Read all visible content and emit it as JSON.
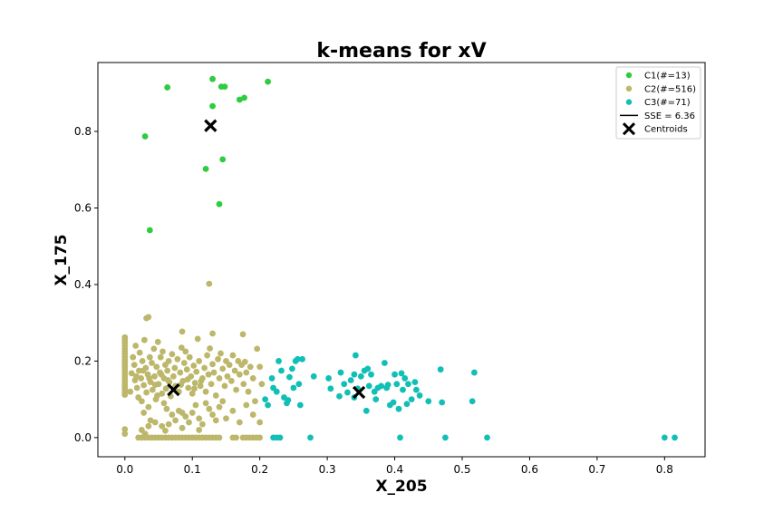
{
  "chart_data": {
    "type": "scatter",
    "title": "k-means for xV",
    "xlabel": "X_205",
    "ylabel": "X_175",
    "xlim": [
      -0.04,
      0.86
    ],
    "ylim": [
      -0.05,
      0.98
    ],
    "xticks": [
      "0.0",
      "0.1",
      "0.2",
      "0.3",
      "0.4",
      "0.5",
      "0.6",
      "0.7",
      "0.8"
    ],
    "yticks": [
      "0.0",
      "0.2",
      "0.4",
      "0.6",
      "0.8"
    ],
    "grid": false,
    "legend_position": "top-right",
    "sse_label": "SSE = 6.36",
    "centroids_label": "Centroids",
    "series": [
      {
        "name": "C1(#=13)",
        "color": "#2ecc40",
        "points": [
          [
            0.063,
            0.915
          ],
          [
            0.13,
            0.937
          ],
          [
            0.143,
            0.917
          ],
          [
            0.148,
            0.917
          ],
          [
            0.212,
            0.93
          ],
          [
            0.17,
            0.883
          ],
          [
            0.177,
            0.888
          ],
          [
            0.13,
            0.866
          ],
          [
            0.03,
            0.787
          ],
          [
            0.145,
            0.727
          ],
          [
            0.12,
            0.702
          ],
          [
            0.14,
            0.61
          ],
          [
            0.037,
            0.542
          ]
        ]
      },
      {
        "name": "C2(#=516)",
        "color": "#bdb76b",
        "points": [
          [
            0.125,
            0.402
          ],
          [
            0.035,
            0.315
          ],
          [
            0.032,
            0.312
          ],
          [
            0.085,
            0.277
          ],
          [
            0.13,
            0.272
          ],
          [
            0.175,
            0.27
          ],
          [
            0.0,
            0.262
          ],
          [
            0.0,
            0.255
          ],
          [
            0.0,
            0.248
          ],
          [
            0.0,
            0.24
          ],
          [
            0.0,
            0.232
          ],
          [
            0.0,
            0.225
          ],
          [
            0.0,
            0.218
          ],
          [
            0.0,
            0.21
          ],
          [
            0.0,
            0.203
          ],
          [
            0.0,
            0.196
          ],
          [
            0.0,
            0.189
          ],
          [
            0.0,
            0.182
          ],
          [
            0.0,
            0.175
          ],
          [
            0.0,
            0.168
          ],
          [
            0.0,
            0.161
          ],
          [
            0.0,
            0.154
          ],
          [
            0.0,
            0.147
          ],
          [
            0.0,
            0.14
          ],
          [
            0.0,
            0.133
          ],
          [
            0.0,
            0.126
          ],
          [
            0.0,
            0.119
          ],
          [
            0.0,
            0.112
          ],
          [
            0.0,
            0.022
          ],
          [
            0.0,
            0.01
          ],
          [
            0.01,
            0.168
          ],
          [
            0.012,
            0.21
          ],
          [
            0.014,
            0.19
          ],
          [
            0.015,
            0.15
          ],
          [
            0.016,
            0.24
          ],
          [
            0.018,
            0.13
          ],
          [
            0.02,
            0.105
          ],
          [
            0.021,
            0.175
          ],
          [
            0.022,
            0.222
          ],
          [
            0.024,
            0.155
          ],
          [
            0.025,
            0.095
          ],
          [
            0.026,
            0.2
          ],
          [
            0.028,
            0.137
          ],
          [
            0.029,
            0.255
          ],
          [
            0.031,
            0.182
          ],
          [
            0.032,
            0.118
          ],
          [
            0.034,
            0.165
          ],
          [
            0.035,
            0.08
          ],
          [
            0.037,
            0.21
          ],
          [
            0.038,
            0.145
          ],
          [
            0.04,
            0.195
          ],
          [
            0.041,
            0.125
          ],
          [
            0.043,
            0.232
          ],
          [
            0.044,
            0.16
          ],
          [
            0.046,
            0.1
          ],
          [
            0.047,
            0.185
          ],
          [
            0.049,
            0.25
          ],
          [
            0.05,
            0.14
          ],
          [
            0.052,
            0.17
          ],
          [
            0.053,
            0.21
          ],
          [
            0.055,
            0.115
          ],
          [
            0.056,
            0.225
          ],
          [
            0.058,
            0.155
          ],
          [
            0.06,
            0.19
          ],
          [
            0.061,
            0.128
          ],
          [
            0.063,
            0.175
          ],
          [
            0.065,
            0.2
          ],
          [
            0.066,
            0.145
          ],
          [
            0.068,
            0.108
          ],
          [
            0.07,
            0.218
          ],
          [
            0.072,
            0.16
          ],
          [
            0.074,
            0.182
          ],
          [
            0.075,
            0.135
          ],
          [
            0.078,
            0.205
          ],
          [
            0.08,
            0.12
          ],
          [
            0.082,
            0.17
          ],
          [
            0.084,
            0.235
          ],
          [
            0.086,
            0.148
          ],
          [
            0.088,
            0.195
          ],
          [
            0.09,
            0.225
          ],
          [
            0.092,
            0.178
          ],
          [
            0.094,
            0.13
          ],
          [
            0.096,
            0.21
          ],
          [
            0.098,
            0.16
          ],
          [
            0.1,
            0.115
          ],
          [
            0.102,
            0.188
          ],
          [
            0.104,
            0.143
          ],
          [
            0.106,
            0.172
          ],
          [
            0.108,
            0.258
          ],
          [
            0.11,
            0.2
          ],
          [
            0.112,
            0.135
          ],
          [
            0.115,
            0.155
          ],
          [
            0.118,
            0.182
          ],
          [
            0.12,
            0.12
          ],
          [
            0.122,
            0.215
          ],
          [
            0.124,
            0.165
          ],
          [
            0.126,
            0.233
          ],
          [
            0.128,
            0.14
          ],
          [
            0.13,
            0.192
          ],
          [
            0.132,
            0.17
          ],
          [
            0.135,
            0.11
          ],
          [
            0.138,
            0.205
          ],
          [
            0.14,
            0.155
          ],
          [
            0.142,
            0.22
          ],
          [
            0.145,
            0.18
          ],
          [
            0.148,
            0.135
          ],
          [
            0.15,
            0.2
          ],
          [
            0.152,
            0.16
          ],
          [
            0.155,
            0.19
          ],
          [
            0.158,
            0.148
          ],
          [
            0.16,
            0.215
          ],
          [
            0.163,
            0.175
          ],
          [
            0.165,
            0.125
          ],
          [
            0.168,
            0.2
          ],
          [
            0.17,
            0.165
          ],
          [
            0.173,
            0.19
          ],
          [
            0.176,
            0.14
          ],
          [
            0.178,
            0.198
          ],
          [
            0.18,
            0.17
          ],
          [
            0.183,
            0.12
          ],
          [
            0.186,
            0.185
          ],
          [
            0.19,
            0.155
          ],
          [
            0.193,
            0.095
          ],
          [
            0.196,
            0.232
          ],
          [
            0.2,
            0.185
          ],
          [
            0.203,
            0.14
          ],
          [
            0.008,
            0.12
          ],
          [
            0.017,
            0.16
          ],
          [
            0.027,
            0.175
          ],
          [
            0.036,
            0.155
          ],
          [
            0.045,
            0.138
          ],
          [
            0.054,
            0.165
          ],
          [
            0.064,
            0.15
          ],
          [
            0.073,
            0.128
          ],
          [
            0.083,
            0.138
          ],
          [
            0.093,
            0.152
          ],
          [
            0.103,
            0.128
          ],
          [
            0.113,
            0.148
          ],
          [
            0.048,
            0.11
          ],
          [
            0.058,
            0.09
          ],
          [
            0.062,
            0.075
          ],
          [
            0.07,
            0.06
          ],
          [
            0.08,
            0.07
          ],
          [
            0.09,
            0.055
          ],
          [
            0.1,
            0.065
          ],
          [
            0.11,
            0.05
          ],
          [
            0.12,
            0.09
          ],
          [
            0.13,
            0.06
          ],
          [
            0.14,
            0.08
          ],
          [
            0.15,
            0.05
          ],
          [
            0.16,
            0.07
          ],
          [
            0.17,
            0.04
          ],
          [
            0.18,
            0.085
          ],
          [
            0.19,
            0.06
          ],
          [
            0.2,
            0.04
          ],
          [
            0.028,
            0.065
          ],
          [
            0.038,
            0.045
          ],
          [
            0.045,
            0.04
          ],
          [
            0.055,
            0.03
          ],
          [
            0.065,
            0.035
          ],
          [
            0.075,
            0.045
          ],
          [
            0.085,
            0.065
          ],
          [
            0.095,
            0.04
          ],
          [
            0.105,
            0.085
          ],
          [
            0.115,
            0.035
          ],
          [
            0.125,
            0.075
          ],
          [
            0.135,
            0.045
          ],
          [
            0.145,
            0.095
          ],
          [
            0.025,
            0.02
          ],
          [
            0.03,
            0.01
          ],
          [
            0.035,
            0.03
          ],
          [
            0.06,
            0.018
          ],
          [
            0.11,
            0.02
          ],
          [
            0.085,
            0.025
          ],
          [
            0.02,
            0.0
          ],
          [
            0.025,
            0.0
          ],
          [
            0.03,
            0.0
          ],
          [
            0.035,
            0.0
          ],
          [
            0.04,
            0.0
          ],
          [
            0.045,
            0.0
          ],
          [
            0.05,
            0.0
          ],
          [
            0.055,
            0.0
          ],
          [
            0.06,
            0.0
          ],
          [
            0.065,
            0.0
          ],
          [
            0.07,
            0.0
          ],
          [
            0.075,
            0.0
          ],
          [
            0.08,
            0.0
          ],
          [
            0.085,
            0.0
          ],
          [
            0.09,
            0.0
          ],
          [
            0.095,
            0.0
          ],
          [
            0.1,
            0.0
          ],
          [
            0.105,
            0.0
          ],
          [
            0.11,
            0.0
          ],
          [
            0.115,
            0.0
          ],
          [
            0.12,
            0.0
          ],
          [
            0.125,
            0.0
          ],
          [
            0.13,
            0.0
          ],
          [
            0.135,
            0.0
          ],
          [
            0.14,
            0.0
          ],
          [
            0.16,
            0.0
          ],
          [
            0.165,
            0.0
          ],
          [
            0.175,
            0.0
          ],
          [
            0.18,
            0.0
          ],
          [
            0.185,
            0.0
          ],
          [
            0.19,
            0.0
          ],
          [
            0.195,
            0.0
          ],
          [
            0.2,
            0.0
          ]
        ]
      },
      {
        "name": "C3(#=71)",
        "color": "#11bfb6",
        "points": [
          [
            0.208,
            0.1
          ],
          [
            0.212,
            0.085
          ],
          [
            0.218,
            0.155
          ],
          [
            0.22,
            0.13
          ],
          [
            0.225,
            0.12
          ],
          [
            0.228,
            0.2
          ],
          [
            0.232,
            0.175
          ],
          [
            0.236,
            0.105
          ],
          [
            0.24,
            0.09
          ],
          [
            0.244,
            0.158
          ],
          [
            0.248,
            0.18
          ],
          [
            0.25,
            0.13
          ],
          [
            0.253,
            0.2
          ],
          [
            0.256,
            0.205
          ],
          [
            0.258,
            0.14
          ],
          [
            0.26,
            0.085
          ],
          [
            0.242,
            0.098
          ],
          [
            0.28,
            0.16
          ],
          [
            0.302,
            0.155
          ],
          [
            0.305,
            0.128
          ],
          [
            0.318,
            0.108
          ],
          [
            0.32,
            0.17
          ],
          [
            0.325,
            0.14
          ],
          [
            0.33,
            0.118
          ],
          [
            0.335,
            0.15
          ],
          [
            0.34,
            0.165
          ],
          [
            0.342,
            0.215
          ],
          [
            0.345,
            0.128
          ],
          [
            0.355,
            0.175
          ],
          [
            0.358,
            0.07
          ],
          [
            0.36,
            0.18
          ],
          [
            0.362,
            0.135
          ],
          [
            0.365,
            0.165
          ],
          [
            0.37,
            0.12
          ],
          [
            0.372,
            0.1
          ],
          [
            0.375,
            0.13
          ],
          [
            0.38,
            0.135
          ],
          [
            0.385,
            0.195
          ],
          [
            0.39,
            0.138
          ],
          [
            0.393,
            0.085
          ],
          [
            0.398,
            0.092
          ],
          [
            0.4,
            0.165
          ],
          [
            0.403,
            0.14
          ],
          [
            0.406,
            0.075
          ],
          [
            0.41,
            0.168
          ],
          [
            0.412,
            0.125
          ],
          [
            0.415,
            0.155
          ],
          [
            0.418,
            0.088
          ],
          [
            0.42,
            0.14
          ],
          [
            0.425,
            0.1
          ],
          [
            0.43,
            0.145
          ],
          [
            0.432,
            0.125
          ],
          [
            0.45,
            0.095
          ],
          [
            0.468,
            0.178
          ],
          [
            0.47,
            0.092
          ],
          [
            0.515,
            0.095
          ],
          [
            0.518,
            0.17
          ],
          [
            0.22,
            0.0
          ],
          [
            0.225,
            0.0
          ],
          [
            0.23,
            0.0
          ],
          [
            0.275,
            0.0
          ],
          [
            0.408,
            0.0
          ],
          [
            0.475,
            0.0
          ],
          [
            0.537,
            0.0
          ],
          [
            0.8,
            0.0
          ],
          [
            0.815,
            0.0
          ],
          [
            0.263,
            0.205
          ],
          [
            0.35,
            0.16
          ],
          [
            0.388,
            0.13
          ],
          [
            0.437,
            0.11
          ],
          [
            0.34,
            0.105
          ]
        ]
      }
    ],
    "centroids": {
      "color": "#000000",
      "points": [
        [
          0.127,
          0.815
        ],
        [
          0.072,
          0.125
        ],
        [
          0.347,
          0.118
        ]
      ]
    }
  }
}
